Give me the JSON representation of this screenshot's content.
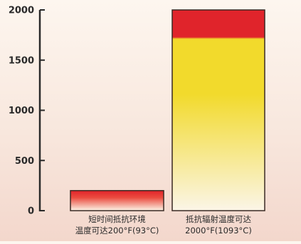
{
  "chart_data": {
    "type": "bar",
    "categories": [
      "短时间抵抗环境\n温度可达200°F(93°C)",
      "抵抗辐射温度可达\n2000°F(1093°C)"
    ],
    "values": [
      200,
      2000
    ],
    "ylim": [
      0,
      2000
    ],
    "yticks": [
      0,
      500,
      1000,
      1500,
      2000
    ],
    "grid": false,
    "colors": {
      "red": "#e0242b",
      "yellow": "#f2da2c",
      "light": "#fbf5e7",
      "axis": "#2a2a2a",
      "text": "#2a2a2a"
    }
  }
}
